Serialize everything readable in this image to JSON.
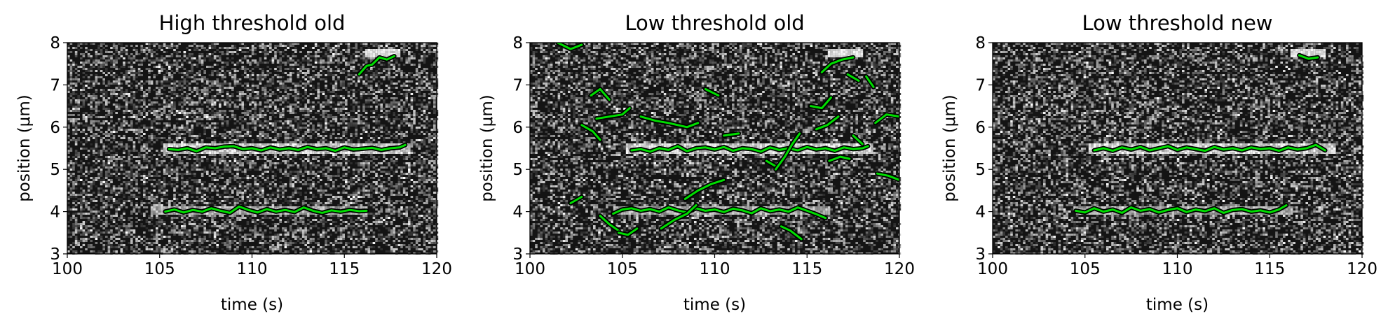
{
  "chart_data": [
    {
      "type": "line",
      "title": "High threshold old",
      "xlabel": "time (s)",
      "ylabel": "position (μm)",
      "xlim": [
        100,
        120
      ],
      "ylim": [
        3,
        8
      ],
      "xticks": [
        "100",
        "105",
        "110",
        "115",
        "120"
      ],
      "yticks": [
        "3",
        "4",
        "5",
        "6",
        "7",
        "8"
      ],
      "background": "grayscale kymograph",
      "series": [
        {
          "x": [
            105.5,
            106,
            106.5,
            107,
            107.5,
            108,
            108.5,
            109,
            109.5,
            110,
            110.5,
            111,
            111.5,
            112,
            112.5,
            113,
            113.5,
            114,
            114.5,
            115,
            115.5,
            116,
            116.5,
            117,
            117.5,
            118,
            118.3
          ],
          "y": [
            5.48,
            5.46,
            5.5,
            5.43,
            5.52,
            5.5,
            5.54,
            5.55,
            5.48,
            5.5,
            5.45,
            5.52,
            5.47,
            5.5,
            5.46,
            5.53,
            5.48,
            5.5,
            5.44,
            5.52,
            5.47,
            5.49,
            5.51,
            5.46,
            5.5,
            5.52,
            5.58
          ]
        },
        {
          "x": [
            105.3,
            105.8,
            106.3,
            106.8,
            107.3,
            107.8,
            108.3,
            108.8,
            109.3,
            109.8,
            110.3,
            110.8,
            111.3,
            111.8,
            112.3,
            112.8,
            113.3,
            113.8,
            114.3,
            114.8,
            115.3,
            115.8,
            116.2
          ],
          "y": [
            4.0,
            4.05,
            3.98,
            4.04,
            4.0,
            4.08,
            4.02,
            3.97,
            4.12,
            4.04,
            3.98,
            4.06,
            4.0,
            4.04,
            3.99,
            4.1,
            4.02,
            3.97,
            4.03,
            4.0,
            4.04,
            4.01,
            4.02
          ]
        },
        {
          "x": [
            115.8,
            116.2,
            116.5,
            116.9,
            117.3,
            117.7
          ],
          "y": [
            7.25,
            7.45,
            7.48,
            7.65,
            7.6,
            7.68
          ]
        }
      ]
    },
    {
      "type": "line",
      "title": "Low threshold old",
      "xlabel": "time (s)",
      "ylabel": "position (μm)",
      "xlim": [
        100,
        120
      ],
      "ylim": [
        3,
        8
      ],
      "xticks": [
        "100",
        "105",
        "110",
        "115",
        "120"
      ],
      "yticks": [
        "3",
        "4",
        "5",
        "6",
        "7",
        "8"
      ],
      "background": "grayscale kymograph",
      "series": [
        {
          "x": [
            105.5,
            106,
            106.5,
            107,
            107.5,
            108,
            108.5,
            109,
            109.5,
            110,
            110.5,
            111,
            111.5,
            112,
            112.5,
            113,
            113.5,
            114,
            114.5,
            115,
            115.5,
            116,
            116.5,
            117,
            117.5,
            118,
            118.3
          ],
          "y": [
            5.45,
            5.48,
            5.42,
            5.5,
            5.46,
            5.55,
            5.43,
            5.5,
            5.52,
            5.47,
            5.53,
            5.44,
            5.5,
            5.48,
            5.42,
            5.52,
            5.46,
            5.5,
            5.45,
            5.53,
            5.47,
            5.5,
            5.44,
            5.52,
            5.48,
            5.5,
            5.55
          ]
        },
        {
          "x": [
            104.5,
            105,
            105.5,
            106,
            106.5,
            107,
            107.5,
            108,
            108.5,
            109,
            109.5,
            110,
            110.5,
            111,
            111.5,
            112,
            112.5,
            113,
            113.5,
            114,
            114.5,
            115,
            115.5,
            116
          ],
          "y": [
            3.95,
            4.05,
            4.08,
            4.02,
            4.06,
            4.0,
            4.1,
            4.03,
            3.98,
            4.08,
            4.02,
            4.05,
            3.99,
            4.07,
            4.03,
            3.96,
            4.08,
            4.01,
            4.05,
            4.0,
            4.1,
            4.02,
            3.94,
            3.85
          ]
        },
        {
          "x": [
            101.5,
            102.2,
            102.8
          ],
          "y": [
            8.0,
            7.85,
            7.95
          ]
        },
        {
          "x": [
            103.3,
            103.8,
            104.3
          ],
          "y": [
            6.75,
            6.9,
            6.65
          ]
        },
        {
          "x": [
            103.6,
            104.3,
            105,
            105.4
          ],
          "y": [
            6.2,
            6.25,
            6.3,
            6.45
          ]
        },
        {
          "x": [
            102.8,
            103.4,
            103.8
          ],
          "y": [
            6.05,
            5.9,
            5.7
          ]
        },
        {
          "x": [
            106,
            106.8,
            107.5,
            108,
            108.5,
            109.1
          ],
          "y": [
            6.25,
            6.15,
            6.1,
            6.05,
            6.0,
            6.1
          ]
        },
        {
          "x": [
            109.5,
            110.2
          ],
          "y": [
            6.9,
            6.75
          ]
        },
        {
          "x": [
            110.5,
            111.3
          ],
          "y": [
            5.8,
            5.85
          ]
        },
        {
          "x": [
            102.2,
            102.8
          ],
          "y": [
            4.2,
            4.35
          ]
        },
        {
          "x": [
            103.8,
            104.3,
            104.8
          ],
          "y": [
            3.9,
            3.7,
            3.55
          ]
        },
        {
          "x": [
            104.8,
            105.3,
            105.8
          ],
          "y": [
            3.5,
            3.45,
            3.6
          ]
        },
        {
          "x": [
            107.1,
            107.8,
            108.5,
            109
          ],
          "y": [
            3.6,
            3.8,
            3.95,
            4.15
          ]
        },
        {
          "x": [
            108.4,
            109.1,
            109.8,
            110.5
          ],
          "y": [
            4.3,
            4.5,
            4.65,
            4.75
          ]
        },
        {
          "x": [
            112.8,
            113.4
          ],
          "y": [
            5.2,
            5.05
          ]
        },
        {
          "x": [
            113.3,
            113.8,
            114.2,
            114.6
          ],
          "y": [
            5.0,
            5.3,
            5.6,
            5.85
          ]
        },
        {
          "x": [
            113.6,
            114.1,
            114.7
          ],
          "y": [
            3.65,
            3.55,
            3.35
          ]
        },
        {
          "x": [
            115.2,
            115.8,
            116.3
          ],
          "y": [
            6.5,
            6.45,
            6.7
          ]
        },
        {
          "x": [
            115.8,
            116.3,
            116.9,
            117.5
          ],
          "y": [
            7.3,
            7.5,
            7.6,
            7.65
          ]
        },
        {
          "x": [
            115.5,
            116.1,
            116.7
          ],
          "y": [
            5.95,
            6.05,
            6.25
          ]
        },
        {
          "x": [
            117.2,
            117.8
          ],
          "y": [
            7.25,
            7.1
          ]
        },
        {
          "x": [
            118.2,
            118.6
          ],
          "y": [
            7.2,
            6.95
          ]
        },
        {
          "x": [
            118.7,
            119.3,
            120
          ],
          "y": [
            6.1,
            6.3,
            6.25
          ]
        },
        {
          "x": [
            116.2,
            116.8,
            117.3
          ],
          "y": [
            5.2,
            5.3,
            5.25
          ]
        },
        {
          "x": [
            117.5,
            118
          ],
          "y": [
            5.8,
            5.6
          ]
        },
        {
          "x": [
            118.8,
            119.4,
            120
          ],
          "y": [
            4.9,
            4.85,
            4.75
          ]
        }
      ]
    },
    {
      "type": "line",
      "title": "Low threshold new",
      "xlabel": "time (s)",
      "ylabel": "position (μm)",
      "xlim": [
        100,
        120
      ],
      "ylim": [
        3,
        8
      ],
      "xticks": [
        "100",
        "105",
        "110",
        "115",
        "120"
      ],
      "yticks": [
        "3",
        "4",
        "5",
        "6",
        "7",
        "8"
      ],
      "background": "grayscale kymograph",
      "series": [
        {
          "x": [
            105.5,
            106,
            106.5,
            107,
            107.5,
            108,
            108.5,
            109,
            109.5,
            110,
            110.5,
            111,
            111.5,
            112,
            112.5,
            113,
            113.5,
            114,
            114.5,
            115,
            115.5,
            116,
            116.5,
            117,
            117.5,
            118
          ],
          "y": [
            5.45,
            5.5,
            5.44,
            5.52,
            5.47,
            5.53,
            5.45,
            5.5,
            5.55,
            5.46,
            5.52,
            5.48,
            5.44,
            5.53,
            5.47,
            5.5,
            5.45,
            5.52,
            5.48,
            5.5,
            5.44,
            5.52,
            5.47,
            5.5,
            5.58,
            5.45
          ]
        },
        {
          "x": [
            104.5,
            105,
            105.5,
            106,
            106.5,
            107,
            107.5,
            108,
            108.5,
            109,
            109.5,
            110,
            110.5,
            111,
            111.5,
            112,
            112.5,
            113,
            113.5,
            114,
            114.5,
            115,
            115.5,
            115.9
          ],
          "y": [
            4.02,
            3.98,
            4.08,
            4.0,
            4.05,
            3.97,
            4.1,
            4.02,
            4.06,
            3.98,
            4.04,
            4.08,
            3.99,
            4.05,
            4.01,
            4.08,
            3.97,
            4.04,
            4.06,
            4.0,
            4.03,
            3.98,
            4.05,
            4.15
          ]
        },
        {
          "x": [
            116.6,
            117.1,
            117.6
          ],
          "y": [
            7.7,
            7.62,
            7.65
          ]
        }
      ]
    }
  ]
}
